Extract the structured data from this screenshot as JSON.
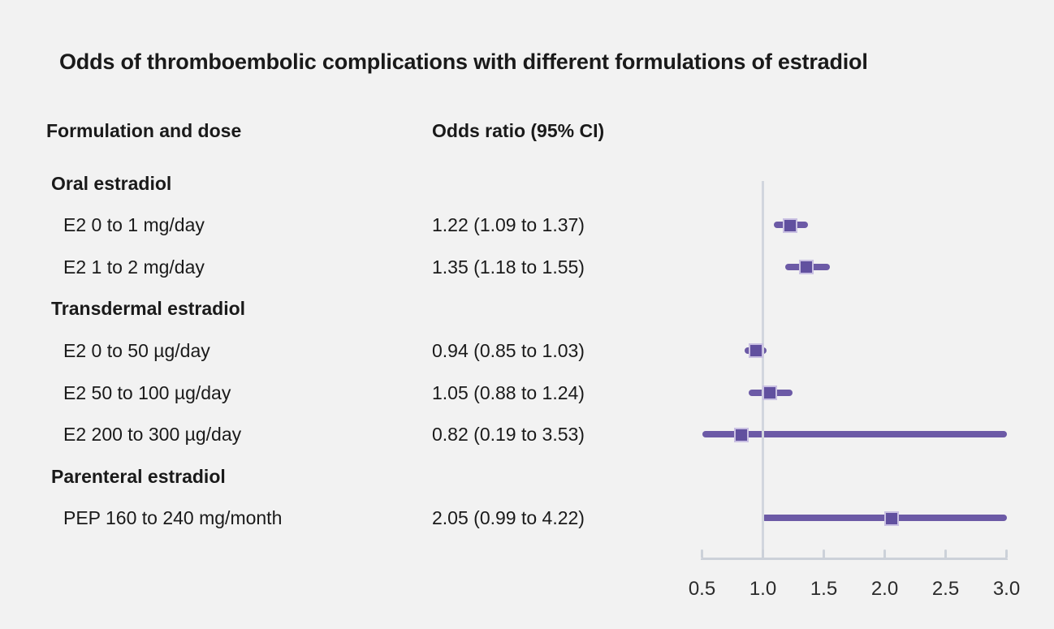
{
  "title": "Odds of thromboembolic complications with different formulations of estradiol",
  "columns": {
    "formulation": "Formulation and dose",
    "odds_ratio": "Odds ratio (95% CI)"
  },
  "colors": {
    "background": "#f2f2f2",
    "text": "#1a1a1a",
    "ci_line": "#6c5aa6",
    "marker_fill": "#61509f",
    "marker_border": "#c9c0e2",
    "axis": "#ccd1d9",
    "reference_line": "#d2d6de"
  },
  "chart_data": {
    "type": "forest",
    "title": "Odds of thromboembolic complications with different formulations of estradiol",
    "xlabel": "",
    "xlim": [
      0.5,
      3.0
    ],
    "reference_value": 1.0,
    "x_tick_labels": [
      "0.5",
      "1.0",
      "1.5",
      "2.0",
      "2.5",
      "3.0"
    ],
    "x_tick_values": [
      0.5,
      1.0,
      1.5,
      2.0,
      2.5,
      3.0
    ],
    "grid": false,
    "rows": [
      {
        "type": "section",
        "label": "Oral estradiol"
      },
      {
        "type": "item",
        "label": "E2 0 to 1 mg/day",
        "value_text": "1.22 (1.09 to 1.37)",
        "estimate": 1.22,
        "ci_low": 1.09,
        "ci_high": 1.37
      },
      {
        "type": "item",
        "label": "E2 1 to 2 mg/day",
        "value_text": "1.35 (1.18 to 1.55)",
        "estimate": 1.35,
        "ci_low": 1.18,
        "ci_high": 1.55
      },
      {
        "type": "section",
        "label": "Transdermal estradiol"
      },
      {
        "type": "item",
        "label": "E2 0 to 50 µg/day",
        "value_text": "0.94 (0.85 to 1.03)",
        "estimate": 0.94,
        "ci_low": 0.85,
        "ci_high": 1.03
      },
      {
        "type": "item",
        "label": "E2 50 to 100 µg/day",
        "value_text": "1.05 (0.88 to 1.24)",
        "estimate": 1.05,
        "ci_low": 0.88,
        "ci_high": 1.24
      },
      {
        "type": "item",
        "label": "E2 200 to 300 µg/day",
        "value_text": "0.82 (0.19 to 3.53)",
        "estimate": 0.82,
        "ci_low": 0.19,
        "ci_high": 3.53
      },
      {
        "type": "section",
        "label": "Parenteral estradiol"
      },
      {
        "type": "item",
        "label": "PEP 160 to 240 mg/month",
        "value_text": "2.05 (0.99 to 4.22)",
        "estimate": 2.05,
        "ci_low": 0.99,
        "ci_high": 4.22
      }
    ]
  }
}
